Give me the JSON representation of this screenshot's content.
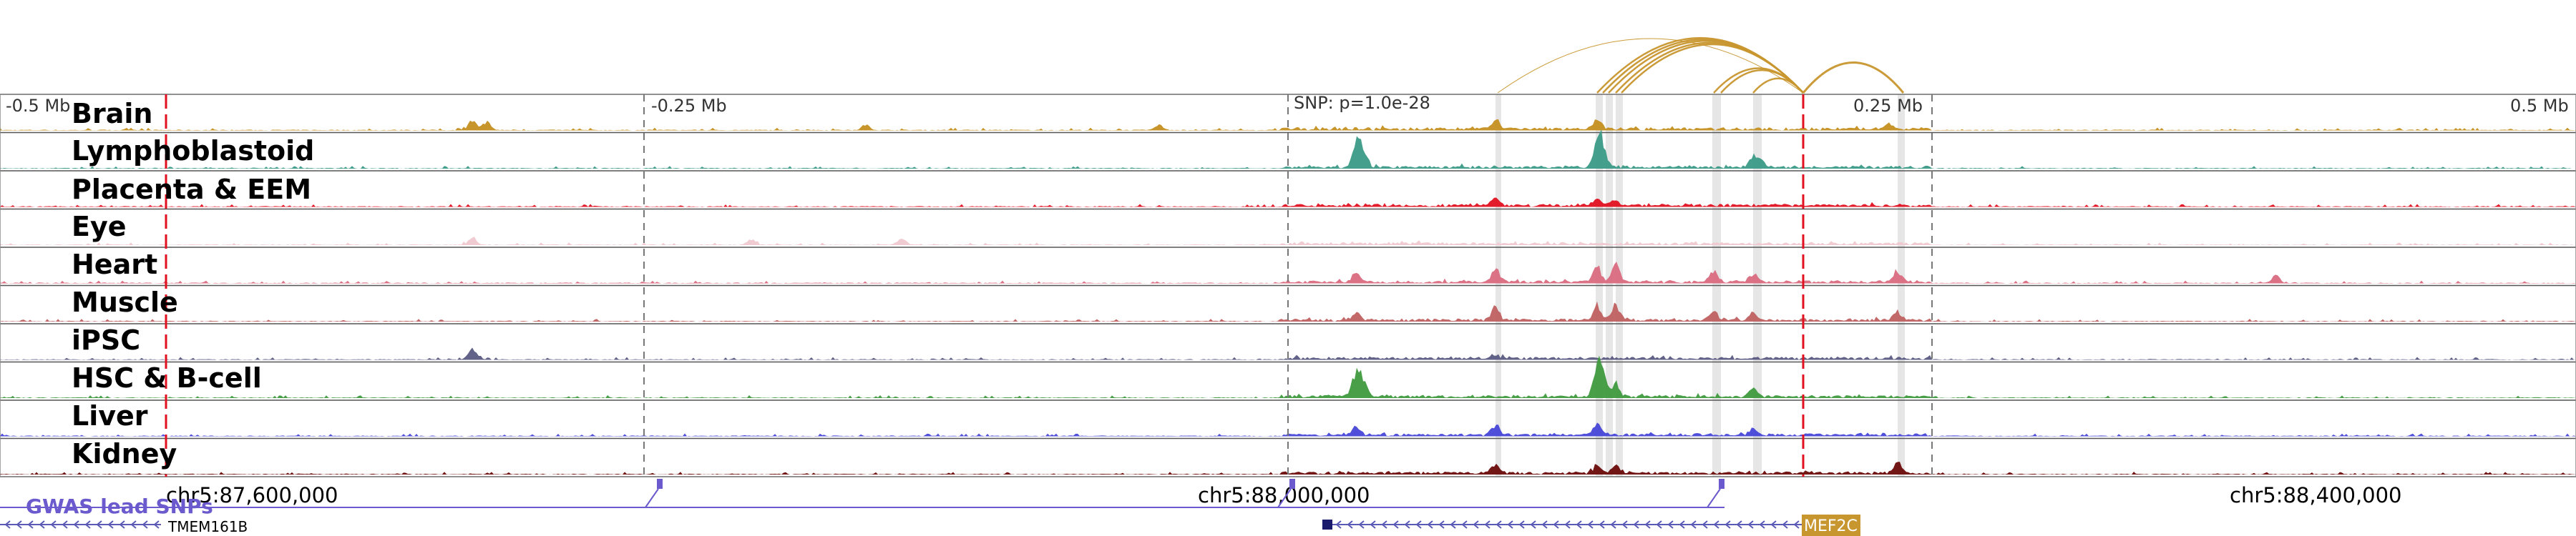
{
  "axis": {
    "left_label": "-0.5 Mb",
    "mid_left_label": "-0.25 Mb",
    "snp_label": "SNP: p=1.0e-28",
    "mid_right_label": "0.25 Mb",
    "right_label": "0.5 Mb"
  },
  "tracks": [
    {
      "name": "Brain",
      "color": "#c48f1f"
    },
    {
      "name": "Lymphoblastoid",
      "color": "#3a9a86"
    },
    {
      "name": "Placenta & EEM",
      "color": "#e01020"
    },
    {
      "name": "Eye",
      "color": "#f0c8d0"
    },
    {
      "name": "Heart",
      "color": "#d96a80"
    },
    {
      "name": "Muscle",
      "color": "#c06060"
    },
    {
      "name": "iPSC",
      "color": "#5a5a82"
    },
    {
      "name": "HSC & B-cell",
      "color": "#3e9a3e"
    },
    {
      "name": "Liver",
      "color": "#4646d8"
    },
    {
      "name": "Kidney",
      "color": "#6a0a0a"
    }
  ],
  "coordinates": [
    "chr5:87,600,000",
    "chr5:88,000,000",
    "chr5:88,400,000"
  ],
  "gwas_label": "GWAS lead SNPs",
  "genes": {
    "left": "TMEM161B",
    "right": "MEF2C"
  },
  "colors": {
    "arc": "#c8962e",
    "red_marker": "#e01020",
    "gwas": "#6a5acd",
    "gene_strand": "#5b5bb5",
    "highlight": "#e3e3e3"
  }
}
